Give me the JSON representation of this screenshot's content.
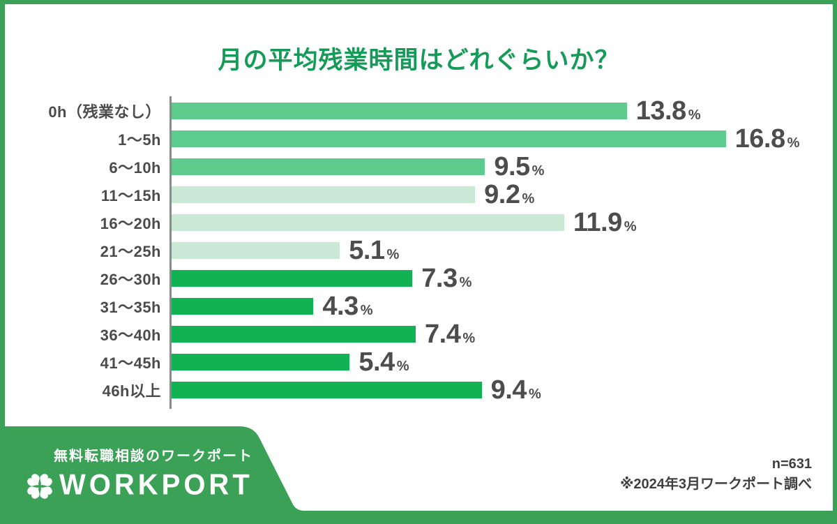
{
  "title": "月の平均残業時間はどれぐらいか？",
  "chart_data": {
    "type": "bar",
    "orientation": "horizontal",
    "title": "月の平均残業時間はどれぐらいか？",
    "unit": "%",
    "categories": [
      "0h（残業なし）",
      "1〜5h",
      "6〜10h",
      "11〜15h",
      "16〜20h",
      "21〜25h",
      "26〜30h",
      "31〜35h",
      "36〜40h",
      "41〜45h",
      "46h以上"
    ],
    "values": [
      13.8,
      16.8,
      9.5,
      9.2,
      11.9,
      5.1,
      7.3,
      4.3,
      7.4,
      5.4,
      9.4
    ],
    "bar_colors": [
      "#5ecb8e",
      "#5ecb8e",
      "#5ecb8e",
      "#c9e9d6",
      "#c9e9d6",
      "#c9e9d6",
      "#12b254",
      "#12b254",
      "#12b254",
      "#12b254",
      "#12b254"
    ],
    "xlim": [
      0,
      18
    ],
    "grid": false,
    "legend": false,
    "value_labels": true
  },
  "footer": {
    "sample_size": "n=631",
    "note": "※2024年3月ワークポート調べ",
    "tagline": "無料転職相談のワークポート",
    "brand": "WORKPORT"
  },
  "colors": {
    "title_green": "#169a57",
    "frame_green": "#3ba156",
    "bar_medium_green": "#5ecb8e",
    "bar_light_green": "#c9e9d6",
    "bar_dark_green": "#12b254",
    "axis_gray": "#8a8a8a",
    "text_dark": "#4b4b4b"
  }
}
